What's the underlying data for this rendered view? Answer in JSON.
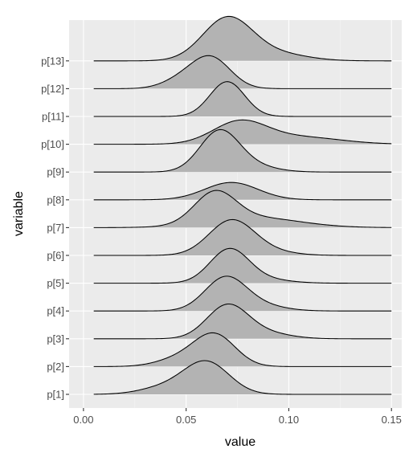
{
  "chart_data": {
    "type": "ridgeline",
    "title": "",
    "xlabel": "value",
    "ylabel": "variable",
    "xlim": [
      -0.007,
      0.155
    ],
    "x_ticks": [
      {
        "value": 0.0,
        "label": "0.00"
      },
      {
        "value": 0.05,
        "label": "0.05"
      },
      {
        "value": 0.1,
        "label": "0.10"
      },
      {
        "value": 0.15,
        "label": "0.15"
      }
    ],
    "x_minor_ticks": [
      0.025,
      0.075,
      0.125
    ],
    "x_range": [
      0.005,
      0.15
    ],
    "grid": true,
    "panel_background": "#ebebeb",
    "ridge_fill": "#b3b3b3",
    "ridge_line": "#000000",
    "categories": [
      "p[1]",
      "p[2]",
      "p[3]",
      "p[4]",
      "p[5]",
      "p[6]",
      "p[7]",
      "p[8]",
      "p[9]",
      "p[10]",
      "p[11]",
      "p[12]",
      "p[13]"
    ],
    "series": [
      {
        "name": "p[1]",
        "ridge_height": 0.97,
        "components": [
          {
            "mean": 0.06,
            "sd": 0.011,
            "weight": 0.82
          },
          {
            "mean": 0.04,
            "sd": 0.012,
            "weight": 0.18
          }
        ]
      },
      {
        "name": "p[2]",
        "ridge_height": 0.97,
        "components": [
          {
            "mean": 0.064,
            "sd": 0.01,
            "weight": 0.8
          },
          {
            "mean": 0.047,
            "sd": 0.011,
            "weight": 0.2
          }
        ]
      },
      {
        "name": "p[3]",
        "ridge_height": 1.0,
        "components": [
          {
            "mean": 0.07,
            "sd": 0.01,
            "weight": 0.85
          },
          {
            "mean": 0.088,
            "sd": 0.012,
            "weight": 0.15
          }
        ]
      },
      {
        "name": "p[4]",
        "ridge_height": 1.0,
        "components": [
          {
            "mean": 0.069,
            "sd": 0.01,
            "weight": 0.85
          },
          {
            "mean": 0.085,
            "sd": 0.012,
            "weight": 0.15
          }
        ]
      },
      {
        "name": "p[5]",
        "ridge_height": 1.0,
        "components": [
          {
            "mean": 0.071,
            "sd": 0.0095,
            "weight": 0.9
          },
          {
            "mean": 0.088,
            "sd": 0.012,
            "weight": 0.1
          }
        ]
      },
      {
        "name": "p[6]",
        "ridge_height": 1.03,
        "components": [
          {
            "mean": 0.072,
            "sd": 0.011,
            "weight": 0.9
          },
          {
            "mean": 0.09,
            "sd": 0.012,
            "weight": 0.1
          }
        ]
      },
      {
        "name": "p[7]",
        "ridge_height": 1.07,
        "components": [
          {
            "mean": 0.064,
            "sd": 0.01,
            "weight": 0.75
          },
          {
            "mean": 0.083,
            "sd": 0.022,
            "weight": 0.25
          }
        ]
      },
      {
        "name": "p[8]",
        "ridge_height": 0.5,
        "components": [
          {
            "mean": 0.072,
            "sd": 0.013,
            "weight": 1.0
          }
        ]
      },
      {
        "name": "p[9]",
        "ridge_height": 1.22,
        "components": [
          {
            "mean": 0.066,
            "sd": 0.0095,
            "weight": 0.85
          },
          {
            "mean": 0.08,
            "sd": 0.012,
            "weight": 0.15
          }
        ]
      },
      {
        "name": "p[10]",
        "ridge_height": 0.7,
        "components": [
          {
            "mean": 0.076,
            "sd": 0.013,
            "weight": 0.75
          },
          {
            "mean": 0.105,
            "sd": 0.02,
            "weight": 0.25
          }
        ]
      },
      {
        "name": "p[11]",
        "ridge_height": 1.0,
        "components": [
          {
            "mean": 0.07,
            "sd": 0.0085,
            "weight": 1.0
          }
        ]
      },
      {
        "name": "p[12]",
        "ridge_height": 0.95,
        "components": [
          {
            "mean": 0.062,
            "sd": 0.0095,
            "weight": 0.8
          },
          {
            "mean": 0.047,
            "sd": 0.009,
            "weight": 0.2
          }
        ]
      },
      {
        "name": "p[13]",
        "ridge_height": 1.28,
        "components": [
          {
            "mean": 0.07,
            "sd": 0.012,
            "weight": 0.85
          },
          {
            "mean": 0.093,
            "sd": 0.015,
            "weight": 0.15
          }
        ]
      }
    ]
  }
}
